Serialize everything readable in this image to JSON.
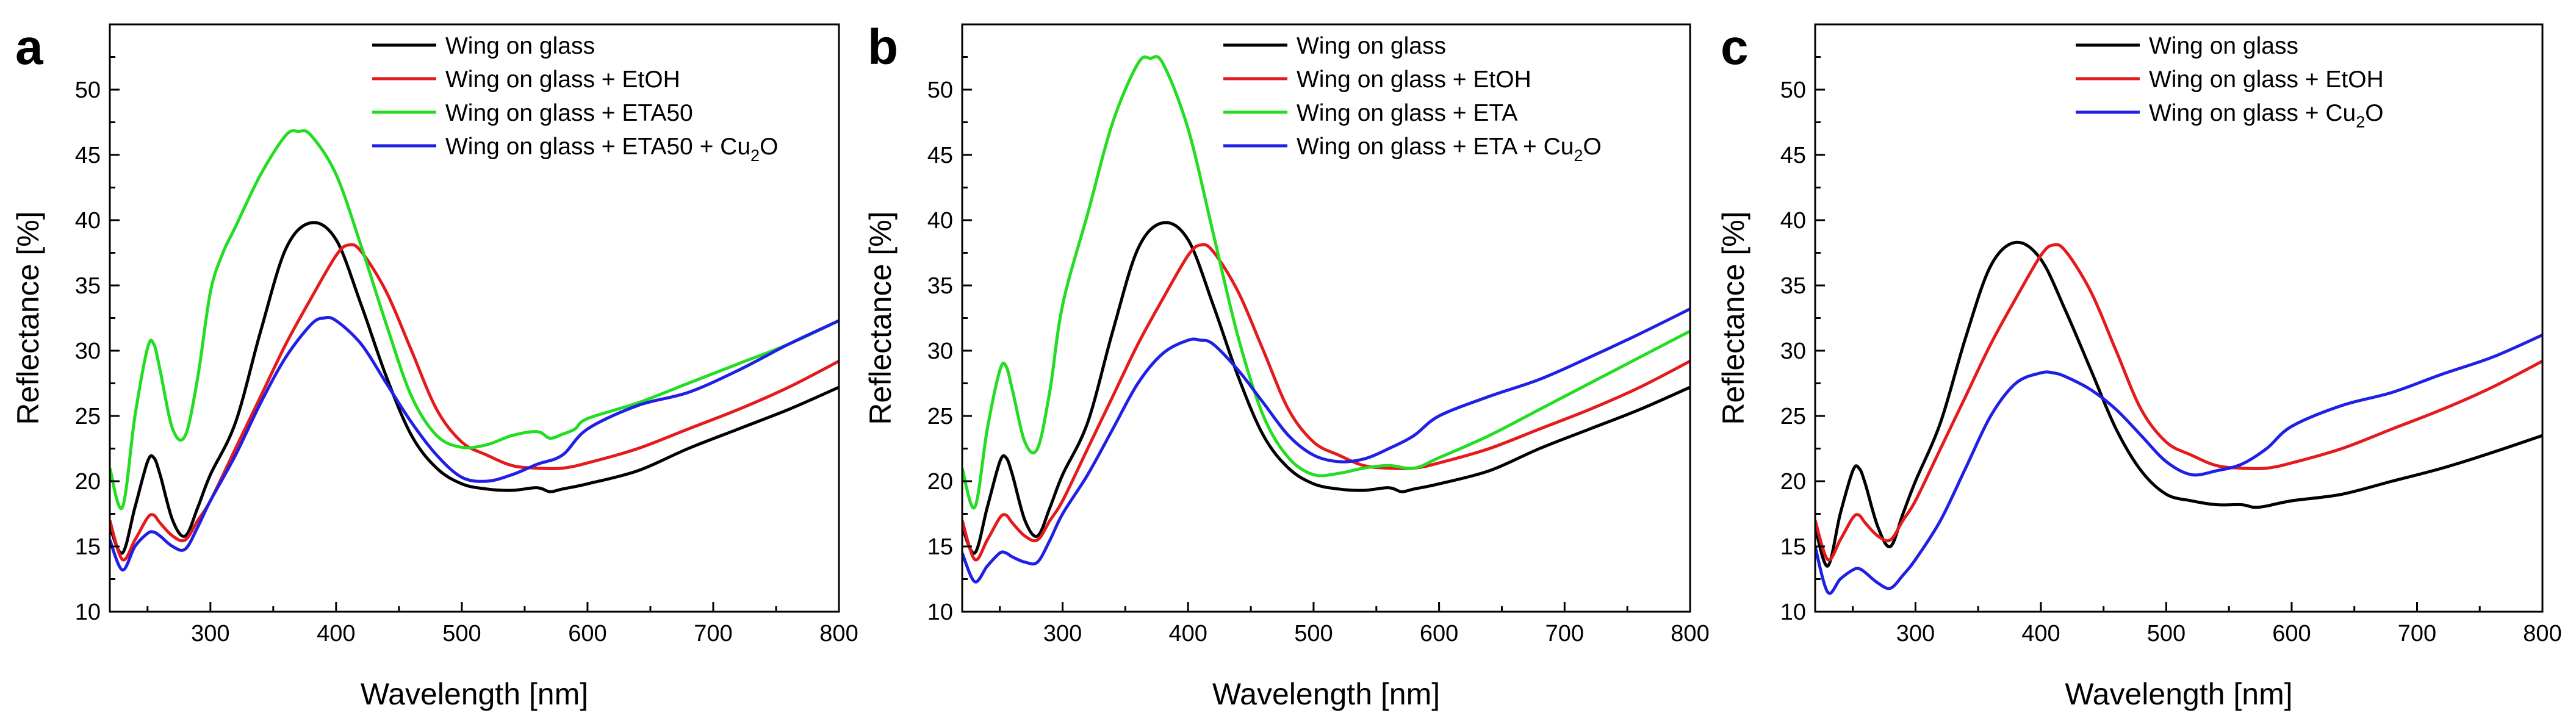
{
  "chart_data": [
    {
      "type": "line",
      "panel_label": "a",
      "xlabel": "Wavelength [nm]",
      "ylabel": "Reflectance [%]",
      "xlim": [
        220,
        800
      ],
      "ylim": [
        10,
        55
      ],
      "x_ticks": [
        300,
        400,
        500,
        600,
        700,
        800
      ],
      "y_ticks": [
        10,
        15,
        20,
        25,
        30,
        35,
        40,
        45,
        50
      ],
      "grid": false,
      "legend_position": "top-right",
      "series": [
        {
          "name": "Wing on glass",
          "label": "Wing on glass",
          "color": "#000000",
          "x": [
            220,
            230,
            240,
            250,
            255,
            260,
            270,
            280,
            290,
            300,
            320,
            340,
            360,
            380,
            400,
            420,
            440,
            460,
            480,
            500,
            520,
            540,
            560,
            570,
            580,
            600,
            640,
            680,
            720,
            760,
            800
          ],
          "y": [
            16.5,
            14.5,
            18.0,
            21.5,
            21.8,
            20.5,
            17.0,
            15.8,
            18.0,
            20.5,
            24.5,
            31.5,
            37.8,
            39.8,
            38.5,
            33.5,
            28.0,
            23.5,
            21.0,
            19.8,
            19.4,
            19.3,
            19.5,
            19.2,
            19.4,
            19.8,
            20.8,
            22.5,
            24.0,
            25.5,
            27.2
          ]
        },
        {
          "name": "Wing on glass + EtOH",
          "label": "Wing on glass + EtOH",
          "color": "#e41a1c",
          "x": [
            220,
            230,
            240,
            250,
            255,
            260,
            270,
            280,
            290,
            300,
            320,
            340,
            360,
            380,
            400,
            410,
            420,
            440,
            460,
            480,
            500,
            520,
            540,
            560,
            580,
            600,
            640,
            680,
            720,
            760,
            800
          ],
          "y": [
            17.0,
            14.0,
            15.5,
            17.2,
            17.4,
            16.8,
            15.8,
            15.5,
            17.0,
            18.5,
            22.5,
            26.5,
            30.5,
            34.0,
            37.3,
            38.1,
            37.6,
            34.5,
            30.0,
            25.5,
            23.0,
            22.0,
            21.2,
            21.0,
            21.0,
            21.4,
            22.5,
            24.0,
            25.5,
            27.2,
            29.2
          ]
        },
        {
          "name": "Wing on glass + ETA50",
          "label": "Wing on glass + ETA50",
          "color": "#22dd22",
          "x": [
            220,
            230,
            240,
            250,
            255,
            260,
            270,
            280,
            290,
            300,
            310,
            320,
            340,
            360,
            370,
            380,
            400,
            420,
            440,
            460,
            480,
            500,
            520,
            540,
            560,
            570,
            580,
            590,
            600,
            640,
            680,
            720,
            760,
            800
          ],
          "y": [
            21.0,
            18.0,
            25.0,
            30.2,
            30.5,
            28.5,
            24.0,
            23.5,
            28.0,
            34.5,
            37.5,
            39.5,
            43.5,
            46.5,
            46.8,
            46.5,
            43.5,
            38.0,
            32.0,
            26.5,
            23.5,
            22.6,
            22.8,
            23.5,
            23.8,
            23.3,
            23.6,
            24.0,
            24.8,
            26.0,
            27.5,
            29.0,
            30.5,
            32.3
          ]
        },
        {
          "name": "Wing on glass + ETA50 + Cu2O",
          "label": "Wing on glass + ETA50 + Cu",
          "sub": "2",
          "suffix": "O",
          "color": "#1f1fe6",
          "x": [
            220,
            230,
            240,
            250,
            255,
            260,
            270,
            280,
            290,
            300,
            320,
            340,
            360,
            380,
            390,
            400,
            420,
            440,
            460,
            480,
            500,
            520,
            540,
            560,
            580,
            600,
            640,
            680,
            720,
            760,
            800
          ],
          "y": [
            15.5,
            13.2,
            15.0,
            16.0,
            16.1,
            15.8,
            15.0,
            14.8,
            16.5,
            18.5,
            22.0,
            26.0,
            29.5,
            32.0,
            32.5,
            32.3,
            30.5,
            27.5,
            24.5,
            22.0,
            20.3,
            20.0,
            20.5,
            21.3,
            22.0,
            24.0,
            25.8,
            26.8,
            28.5,
            30.5,
            32.3
          ]
        }
      ]
    },
    {
      "type": "line",
      "panel_label": "b",
      "xlabel": "Wavelength [nm]",
      "ylabel": "Reflectance [%]",
      "xlim": [
        220,
        800
      ],
      "ylim": [
        10,
        55
      ],
      "x_ticks": [
        300,
        400,
        500,
        600,
        700,
        800
      ],
      "y_ticks": [
        10,
        15,
        20,
        25,
        30,
        35,
        40,
        45,
        50
      ],
      "grid": false,
      "legend_position": "top-right",
      "series": [
        {
          "name": "Wing on glass",
          "label": "Wing on glass",
          "color": "#000000",
          "x": [
            220,
            230,
            240,
            250,
            255,
            260,
            270,
            280,
            290,
            300,
            320,
            340,
            360,
            380,
            400,
            420,
            440,
            460,
            480,
            500,
            520,
            540,
            560,
            570,
            580,
            600,
            640,
            680,
            720,
            760,
            800
          ],
          "y": [
            16.5,
            14.5,
            18.0,
            21.5,
            21.8,
            20.5,
            17.0,
            15.8,
            18.0,
            20.5,
            24.5,
            31.5,
            37.8,
            39.8,
            38.5,
            33.5,
            28.0,
            23.5,
            21.0,
            19.8,
            19.4,
            19.3,
            19.5,
            19.2,
            19.4,
            19.8,
            20.8,
            22.5,
            24.0,
            25.5,
            27.2
          ]
        },
        {
          "name": "Wing on glass + EtOH",
          "label": "Wing on glass + EtOH",
          "color": "#e41a1c",
          "x": [
            220,
            230,
            240,
            250,
            255,
            260,
            270,
            280,
            290,
            300,
            320,
            340,
            360,
            380,
            400,
            410,
            420,
            440,
            460,
            480,
            500,
            520,
            540,
            560,
            580,
            600,
            640,
            680,
            720,
            760,
            800
          ],
          "y": [
            17.0,
            14.0,
            15.5,
            17.2,
            17.4,
            16.8,
            15.8,
            15.5,
            17.0,
            18.5,
            22.5,
            26.5,
            30.5,
            34.0,
            37.3,
            38.1,
            37.6,
            34.5,
            30.0,
            25.5,
            23.0,
            22.0,
            21.2,
            21.0,
            21.0,
            21.4,
            22.5,
            24.0,
            25.5,
            27.2,
            29.2
          ]
        },
        {
          "name": "Wing on glass + ETA",
          "label": "Wing on glass + ETA",
          "color": "#22dd22",
          "x": [
            220,
            230,
            240,
            250,
            255,
            260,
            270,
            280,
            290,
            300,
            320,
            340,
            360,
            370,
            380,
            400,
            420,
            440,
            460,
            480,
            500,
            520,
            540,
            560,
            580,
            600,
            640,
            680,
            720,
            760,
            800
          ],
          "y": [
            21.0,
            18.0,
            24.0,
            28.5,
            28.8,
            27.0,
            23.0,
            22.5,
            27.0,
            33.5,
            40.5,
            47.5,
            52.0,
            52.4,
            52.0,
            47.0,
            39.0,
            31.0,
            25.0,
            21.8,
            20.5,
            20.6,
            21.0,
            21.2,
            21.0,
            21.8,
            23.5,
            25.5,
            27.5,
            29.5,
            31.5
          ]
        },
        {
          "name": "Wing on glass + ETA + Cu2O",
          "label": "Wing on glass + ETA + Cu",
          "sub": "2",
          "suffix": "O",
          "color": "#1f1fe6",
          "x": [
            220,
            230,
            240,
            250,
            255,
            260,
            270,
            280,
            290,
            300,
            320,
            340,
            360,
            380,
            400,
            410,
            420,
            440,
            460,
            480,
            500,
            520,
            540,
            560,
            580,
            600,
            640,
            680,
            720,
            760,
            800
          ],
          "y": [
            14.5,
            12.3,
            13.5,
            14.5,
            14.5,
            14.2,
            13.8,
            13.8,
            15.5,
            17.5,
            20.5,
            24.0,
            27.5,
            29.8,
            30.8,
            30.8,
            30.5,
            28.5,
            26.0,
            23.5,
            22.0,
            21.5,
            21.7,
            22.5,
            23.5,
            25.0,
            26.5,
            27.8,
            29.5,
            31.3,
            33.2
          ]
        }
      ]
    },
    {
      "type": "line",
      "panel_label": "c",
      "xlabel": "Wavelength [nm]",
      "ylabel": "Reflectance [%]",
      "xlim": [
        220,
        800
      ],
      "ylim": [
        10,
        55
      ],
      "x_ticks": [
        300,
        400,
        500,
        600,
        700,
        800
      ],
      "y_ticks": [
        10,
        15,
        20,
        25,
        30,
        35,
        40,
        45,
        50
      ],
      "grid": false,
      "legend_position": "top-right",
      "series": [
        {
          "name": "Wing on glass",
          "label": "Wing on glass",
          "color": "#000000",
          "x": [
            220,
            230,
            240,
            250,
            255,
            260,
            270,
            280,
            290,
            300,
            320,
            340,
            360,
            380,
            400,
            420,
            440,
            460,
            480,
            500,
            520,
            540,
            560,
            570,
            580,
            600,
            640,
            680,
            720,
            760,
            800
          ],
          "y": [
            16.5,
            13.5,
            17.5,
            20.8,
            21.0,
            19.8,
            16.5,
            15.0,
            17.5,
            20.0,
            24.5,
            31.0,
            36.5,
            38.3,
            37.0,
            33.0,
            28.5,
            24.0,
            20.8,
            19.0,
            18.5,
            18.2,
            18.2,
            18.0,
            18.1,
            18.5,
            19.0,
            20.0,
            21.0,
            22.2,
            23.5
          ]
        },
        {
          "name": "Wing on glass + EtOH",
          "label": "Wing on glass + EtOH",
          "color": "#e41a1c",
          "x": [
            220,
            230,
            240,
            250,
            255,
            260,
            270,
            280,
            290,
            300,
            320,
            340,
            360,
            380,
            400,
            410,
            420,
            440,
            460,
            480,
            500,
            520,
            540,
            560,
            580,
            600,
            640,
            680,
            720,
            760,
            800
          ],
          "y": [
            17.0,
            14.0,
            15.5,
            17.2,
            17.4,
            16.8,
            15.8,
            15.5,
            17.0,
            18.5,
            22.5,
            26.5,
            30.5,
            34.0,
            37.3,
            38.1,
            37.6,
            34.5,
            30.0,
            25.5,
            23.0,
            22.0,
            21.2,
            21.0,
            21.0,
            21.4,
            22.5,
            24.0,
            25.5,
            27.2,
            29.2
          ]
        },
        {
          "name": "Wing on glass + Cu2O",
          "label": "Wing on glass + Cu",
          "sub": "2",
          "suffix": "O",
          "color": "#1f1fe6",
          "x": [
            220,
            230,
            240,
            250,
            255,
            260,
            270,
            280,
            290,
            300,
            320,
            340,
            360,
            380,
            400,
            410,
            420,
            440,
            460,
            480,
            500,
            520,
            540,
            560,
            580,
            600,
            640,
            680,
            720,
            760,
            800
          ],
          "y": [
            15.0,
            11.5,
            12.5,
            13.2,
            13.3,
            13.0,
            12.2,
            11.8,
            12.8,
            14.0,
            17.0,
            21.0,
            25.0,
            27.5,
            28.3,
            28.3,
            28.0,
            27.0,
            25.5,
            23.5,
            21.5,
            20.5,
            20.8,
            21.3,
            22.5,
            24.2,
            25.8,
            26.8,
            28.2,
            29.5,
            31.2
          ]
        }
      ]
    }
  ]
}
